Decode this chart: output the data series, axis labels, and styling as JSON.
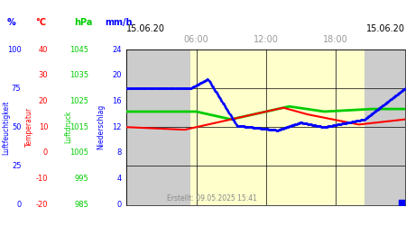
{
  "title_left": "15.06.20",
  "title_right": "15.06.20",
  "created": "Erstellt: 09.05.2025 15:41",
  "time_labels": [
    "06:00",
    "12:00",
    "18:00"
  ],
  "ylabel_humidity": "Luftfeuchtigkeit",
  "ylabel_temp": "Temperatur",
  "ylabel_pressure": "Luftdruck",
  "ylabel_precip": "Niederschlag",
  "col_humidity": "#0000ff",
  "col_temp": "#ff0000",
  "col_pressure": "#00cc00",
  "col_precip": "#0000ff",
  "axis_labels": [
    "%",
    "°C",
    "hPa",
    "mm/h"
  ],
  "axis_colors": [
    "#0000ff",
    "#ff0000",
    "#00cc00",
    "#0000ff"
  ],
  "yticks_humidity": [
    0,
    25,
    50,
    75,
    100
  ],
  "yticks_temp": [
    -20,
    -10,
    0,
    10,
    20,
    30,
    40
  ],
  "yticks_pressure": [
    985,
    995,
    1005,
    1015,
    1025,
    1035,
    1045
  ],
  "yticks_precip": [
    0,
    4,
    8,
    12,
    16,
    20,
    24
  ],
  "background_day": "#ffffcc",
  "background_night": "#cccccc",
  "grid_color": "#000000",
  "text_color_date": "#000000",
  "text_color_time": "#999999",
  "sunrise": 5.5,
  "sunset": 20.5,
  "fig_width": 4.5,
  "fig_height": 2.5,
  "dpi": 100
}
